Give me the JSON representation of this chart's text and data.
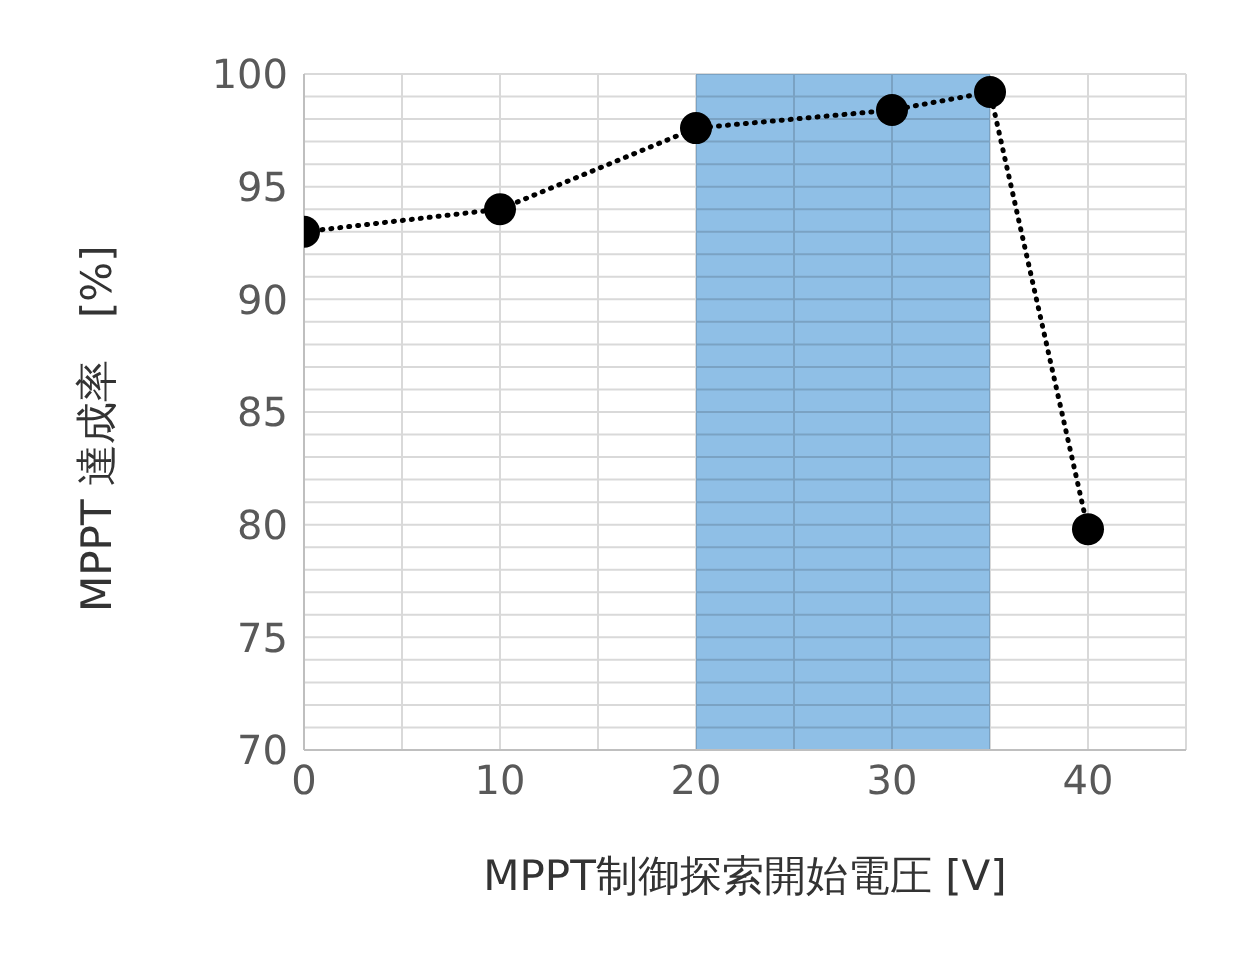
{
  "chart_data": {
    "type": "line",
    "xlabel": "MPPT制御探索開始電圧 [V]",
    "ylabel": "MPPT 達成率　[%]",
    "x": [
      0,
      10,
      20,
      30,
      35,
      40
    ],
    "series": [
      {
        "color": "#000000",
        "values": [
          93,
          94,
          97.6,
          98.4,
          99.2,
          79.8
        ]
      }
    ],
    "xlim": [
      0,
      45
    ],
    "xticks": [
      0,
      {
        "value": 5,
        "label": null
      },
      10,
      {
        "value": 15,
        "label": null
      },
      20,
      {
        "value": 25,
        "label": null
      },
      30,
      {
        "value": 35,
        "label": null
      },
      40,
      {
        "value": 45,
        "label": null
      }
    ],
    "ylim": [
      70,
      100
    ],
    "yticks": [
      70,
      {
        "value": 71,
        "label": null
      },
      {
        "value": 72,
        "label": null
      },
      {
        "value": 73,
        "label": null
      },
      {
        "value": 74,
        "label": null
      },
      75,
      {
        "value": 76,
        "label": null
      },
      {
        "value": 77,
        "label": null
      },
      {
        "value": 78,
        "label": null
      },
      {
        "value": 79,
        "label": null
      },
      80,
      {
        "value": 81,
        "label": null
      },
      {
        "value": 82,
        "label": null
      },
      {
        "value": 83,
        "label": null
      },
      {
        "value": 84,
        "label": null
      },
      85,
      {
        "value": 86,
        "label": null
      },
      {
        "value": 87,
        "label": null
      },
      {
        "value": 88,
        "label": null
      },
      {
        "value": 89,
        "label": null
      },
      90,
      {
        "value": 91,
        "label": null
      },
      {
        "value": 92,
        "label": null
      },
      {
        "value": 93,
        "label": null
      },
      {
        "value": 94,
        "label": null
      },
      95,
      {
        "value": 96,
        "label": null
      },
      {
        "value": 97,
        "label": null
      },
      {
        "value": 98,
        "label": null
      },
      {
        "value": 99,
        "label": null
      },
      100
    ],
    "bands": [
      {
        "axis": "x",
        "from": 20,
        "to": 35,
        "color": "#8fbfe6"
      }
    ],
    "grid": true,
    "marker": "circle",
    "line_style": "dotted"
  }
}
